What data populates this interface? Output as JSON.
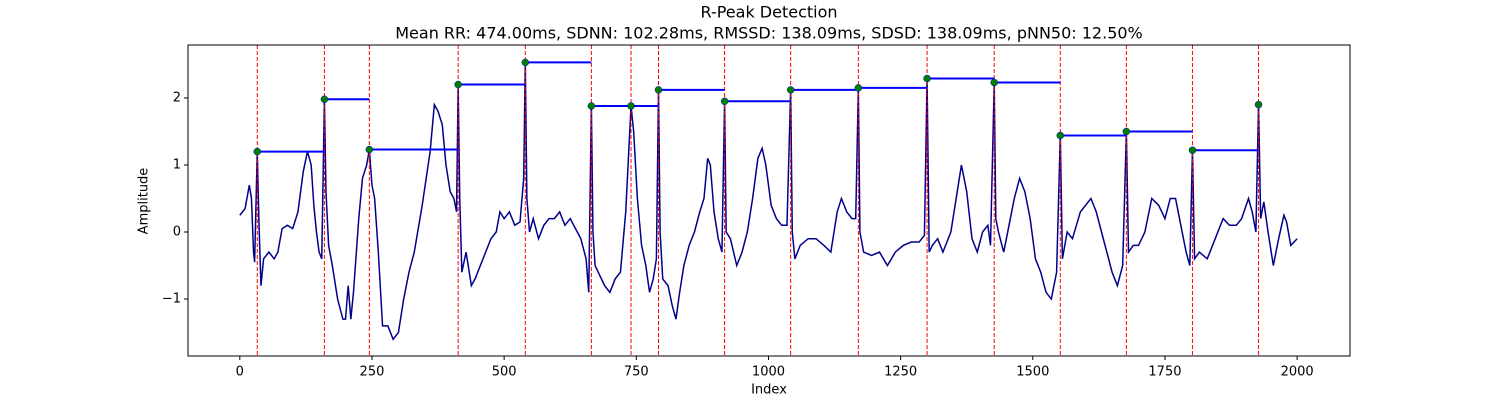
{
  "chart_data": {
    "type": "line",
    "title": "R-Peak Detection",
    "subtitle": "Mean RR: 474.00ms, SDNN: 102.28ms, RMSSD: 138.09ms, SDSD: 138.09ms, pNN50: 12.50%",
    "x_label": "Index",
    "y_label": "Amplitude",
    "xlim": [
      -98,
      2100
    ],
    "ylim": [
      -1.85,
      2.79
    ],
    "xticks": [
      0,
      250,
      500,
      750,
      1000,
      1250,
      1500,
      1750,
      2000
    ],
    "yticks": [
      {
        "value": -1,
        "label": "−1"
      },
      0,
      1,
      2
    ],
    "signal": {
      "color": "#00008b",
      "x": [
        0,
        10,
        18,
        22,
        26,
        28,
        33,
        36,
        40,
        45,
        55,
        65,
        72,
        80,
        90,
        100,
        110,
        120,
        128,
        135,
        140,
        145,
        150,
        155,
        160,
        163,
        168,
        175,
        185,
        195,
        200,
        205,
        210,
        215,
        225,
        232,
        240,
        245,
        250,
        255,
        262,
        270,
        280,
        290,
        300,
        310,
        320,
        330,
        345,
        360,
        368,
        375,
        383,
        390,
        398,
        405,
        410,
        413,
        416,
        420,
        428,
        438,
        445,
        455,
        465,
        475,
        485,
        492,
        500,
        510,
        520,
        530,
        537,
        540,
        543,
        548,
        555,
        565,
        575,
        585,
        595,
        605,
        615,
        625,
        635,
        645,
        655,
        660,
        665,
        668,
        672,
        678,
        690,
        700,
        710,
        720,
        730,
        740,
        745,
        752,
        760,
        768,
        775,
        782,
        788,
        792,
        795,
        800,
        810,
        818,
        825,
        832,
        840,
        850,
        860,
        870,
        878,
        885,
        890,
        897,
        905,
        912,
        917,
        920,
        928,
        940,
        950,
        960,
        970,
        980,
        988,
        995,
        1005,
        1015,
        1025,
        1035,
        1042,
        1045,
        1050,
        1060,
        1075,
        1090,
        1105,
        1118,
        1130,
        1138,
        1148,
        1158,
        1165,
        1170,
        1173,
        1180,
        1195,
        1210,
        1225,
        1240,
        1255,
        1270,
        1285,
        1295,
        1300,
        1304,
        1310,
        1320,
        1330,
        1345,
        1355,
        1365,
        1375,
        1385,
        1395,
        1405,
        1415,
        1420,
        1427,
        1430,
        1435,
        1445,
        1455,
        1465,
        1475,
        1485,
        1495,
        1505,
        1515,
        1525,
        1535,
        1545,
        1552,
        1556,
        1565,
        1575,
        1590,
        1600,
        1610,
        1620,
        1630,
        1640,
        1650,
        1660,
        1670,
        1677,
        1681,
        1690,
        1700,
        1712,
        1725,
        1738,
        1750,
        1760,
        1770,
        1780,
        1790,
        1797,
        1802,
        1806,
        1815,
        1830,
        1845,
        1860,
        1872,
        1885,
        1895,
        1908,
        1915,
        1922,
        1927,
        1931,
        1937,
        1945,
        1955,
        1965,
        1975,
        1980,
        1988,
        2000
      ],
      "values": [
        0.25,
        0.35,
        0.7,
        0.5,
        -0.3,
        -0.45,
        1.2,
        0.2,
        -0.8,
        -0.4,
        -0.3,
        -0.4,
        -0.3,
        0.05,
        0.1,
        0.05,
        0.3,
        0.9,
        1.2,
        1.0,
        0.4,
        0.0,
        -0.3,
        -0.4,
        1.98,
        0.6,
        -0.2,
        -0.5,
        -1.0,
        -1.3,
        -1.3,
        -0.8,
        -1.3,
        -0.9,
        0.2,
        0.8,
        1.0,
        1.23,
        0.7,
        0.5,
        -0.3,
        -1.4,
        -1.4,
        -1.6,
        -1.5,
        -1.0,
        -0.6,
        -0.3,
        0.4,
        1.2,
        1.9,
        1.8,
        1.6,
        1.0,
        0.6,
        0.5,
        0.3,
        2.2,
        0.5,
        -0.6,
        -0.3,
        -0.8,
        -0.7,
        -0.5,
        -0.3,
        -0.1,
        0.0,
        0.3,
        0.2,
        0.3,
        0.1,
        0.15,
        0.8,
        2.53,
        0.5,
        0.0,
        0.2,
        -0.1,
        0.1,
        0.2,
        0.2,
        0.3,
        0.1,
        0.2,
        0.05,
        -0.1,
        -0.4,
        -0.9,
        1.88,
        0.0,
        -0.5,
        -0.6,
        -0.8,
        -0.9,
        -0.7,
        -0.6,
        0.3,
        1.88,
        1.5,
        0.5,
        -0.2,
        -0.5,
        -0.9,
        -0.7,
        -0.4,
        2.12,
        0.0,
        -0.7,
        -0.8,
        -1.1,
        -1.3,
        -0.9,
        -0.5,
        -0.2,
        0.0,
        0.3,
        0.5,
        1.1,
        1.0,
        0.3,
        -0.1,
        -0.3,
        1.95,
        0.0,
        -0.1,
        -0.5,
        -0.3,
        0.0,
        0.5,
        1.1,
        1.25,
        1.0,
        0.4,
        0.2,
        0.1,
        0.1,
        2.12,
        0.0,
        -0.4,
        -0.2,
        -0.1,
        -0.1,
        -0.2,
        -0.3,
        0.3,
        0.5,
        0.3,
        0.2,
        0.2,
        2.15,
        0.0,
        -0.3,
        -0.35,
        -0.3,
        -0.5,
        -0.3,
        -0.2,
        -0.15,
        -0.15,
        -0.05,
        2.29,
        -0.3,
        -0.2,
        -0.1,
        -0.3,
        0.0,
        0.5,
        1.0,
        0.6,
        -0.1,
        -0.3,
        0.0,
        0.1,
        -0.2,
        2.23,
        0.2,
        0.0,
        -0.3,
        0.1,
        0.5,
        0.8,
        0.6,
        0.2,
        -0.4,
        -0.6,
        -0.9,
        -1.0,
        -0.6,
        1.44,
        -0.4,
        0.0,
        -0.1,
        0.3,
        0.4,
        0.5,
        0.3,
        0.0,
        -0.3,
        -0.6,
        -0.8,
        -0.5,
        1.5,
        -0.3,
        -0.2,
        -0.2,
        0.0,
        0.5,
        0.4,
        0.2,
        0.5,
        0.5,
        0.1,
        -0.3,
        -0.5,
        1.22,
        -0.4,
        -0.3,
        -0.4,
        -0.1,
        0.2,
        0.1,
        0.1,
        0.2,
        0.5,
        0.3,
        0.0,
        1.9,
        0.2,
        0.45,
        0.0,
        -0.5,
        -0.1,
        0.25,
        0.15,
        -0.2,
        -0.1
      ]
    },
    "peaks": {
      "color": "#008000",
      "x": [
        33,
        160,
        245,
        413,
        540,
        665,
        740,
        792,
        917,
        1042,
        1170,
        1300,
        1427,
        1552,
        1677,
        1802,
        1927
      ],
      "values": [
        1.2,
        1.98,
        1.23,
        2.2,
        2.53,
        1.88,
        1.88,
        2.12,
        1.95,
        2.12,
        2.15,
        2.29,
        2.23,
        1.44,
        1.5,
        1.22,
        1.9
      ]
    },
    "peak_line_color": "#ff0000",
    "rr_line_color": "#0000ff"
  }
}
